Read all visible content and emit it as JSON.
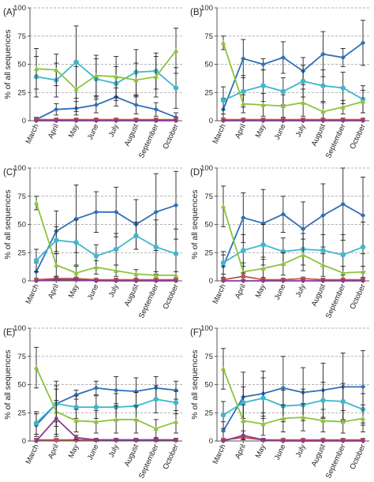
{
  "chart_data": [
    {
      "type": "line",
      "panel_label": "(A)",
      "ylabel": "% of all sequences",
      "categories": [
        "March",
        "April",
        "May",
        "June",
        "July",
        "August",
        "September",
        "October"
      ],
      "ylim": [
        0,
        100
      ],
      "yticks": [
        0,
        25,
        50,
        75,
        100
      ],
      "grid": true,
      "series": [
        {
          "color": "#2E6FB7",
          "values": [
            1,
            10,
            11,
            14,
            21,
            14,
            10,
            3
          ],
          "err": [
            2,
            5,
            6,
            7,
            8,
            8,
            6,
            4
          ]
        },
        {
          "color": "#3FB6CC",
          "values": [
            39,
            36,
            52,
            37,
            33,
            43,
            44,
            29
          ],
          "err": [
            18,
            15,
            32,
            18,
            15,
            20,
            16,
            18
          ]
        },
        {
          "color": "#8CC43C",
          "values": [
            46,
            45,
            28,
            40,
            39,
            36,
            39,
            62
          ],
          "err": [
            18,
            14,
            20,
            18,
            18,
            15,
            18,
            20
          ]
        },
        {
          "color": "#C0504D",
          "values": [
            1,
            1,
            1,
            1,
            1,
            1,
            1,
            1
          ],
          "err": [
            1,
            1,
            1,
            1,
            1,
            1,
            1,
            1
          ]
        },
        {
          "color": "#8A3C8F",
          "values": [
            0,
            0,
            0,
            0,
            0,
            0,
            0,
            0
          ],
          "err": [
            0,
            0,
            0,
            0,
            0,
            0,
            0,
            0
          ]
        }
      ]
    },
    {
      "type": "line",
      "panel_label": "(B)",
      "ylabel": "",
      "categories": [
        "March",
        "April",
        "May",
        "June",
        "July",
        "August",
        "September",
        "October"
      ],
      "ylim": [
        0,
        100
      ],
      "yticks": [
        0,
        25,
        50,
        75,
        100
      ],
      "grid": true,
      "series": [
        {
          "color": "#2E6FB7",
          "values": [
            10,
            55,
            50,
            56,
            44,
            59,
            56,
            69
          ],
          "err": [
            10,
            17,
            5,
            14,
            12,
            20,
            8,
            20
          ]
        },
        {
          "color": "#3FB6CC",
          "values": [
            18,
            26,
            31,
            26,
            35,
            31,
            29,
            19
          ],
          "err": [
            12,
            14,
            14,
            12,
            14,
            14,
            14,
            12
          ]
        },
        {
          "color": "#8CC43C",
          "values": [
            69,
            15,
            14,
            13,
            16,
            8,
            12,
            17
          ],
          "err": [
            6,
            8,
            10,
            10,
            12,
            8,
            6,
            10
          ]
        },
        {
          "color": "#C0504D",
          "values": [
            1,
            1,
            1,
            1,
            1,
            1,
            1,
            1
          ],
          "err": [
            1,
            1,
            1,
            1,
            1,
            1,
            1,
            1
          ]
        },
        {
          "color": "#8A3C8F",
          "values": [
            0,
            0,
            0,
            0,
            0,
            0,
            0,
            0
          ],
          "err": [
            0,
            0,
            0,
            0,
            0,
            0,
            0,
            0
          ]
        }
      ]
    },
    {
      "type": "line",
      "panel_label": "(C)",
      "ylabel": "% of all sequences",
      "categories": [
        "March",
        "April",
        "May",
        "June",
        "July",
        "August",
        "September",
        "October"
      ],
      "ylim": [
        0,
        100
      ],
      "yticks": [
        0,
        25,
        50,
        75,
        100
      ],
      "grid": true,
      "series": [
        {
          "color": "#2E6FB7",
          "values": [
            8,
            44,
            55,
            61,
            61,
            50,
            61,
            67
          ],
          "err": [
            8,
            18,
            30,
            18,
            22,
            22,
            34,
            30
          ]
        },
        {
          "color": "#3FB6CC",
          "values": [
            18,
            36,
            34,
            22,
            28,
            40,
            30,
            24
          ],
          "err": [
            10,
            12,
            20,
            10,
            14,
            12,
            24,
            22
          ]
        },
        {
          "color": "#8CC43C",
          "values": [
            69,
            14,
            7,
            12,
            9,
            6,
            5,
            5
          ],
          "err": [
            6,
            10,
            6,
            6,
            5,
            4,
            3,
            3
          ]
        },
        {
          "color": "#C0504D",
          "values": [
            1,
            2,
            2,
            1,
            1,
            1,
            1,
            1
          ],
          "err": [
            1,
            2,
            1,
            1,
            1,
            1,
            1,
            1
          ]
        },
        {
          "color": "#8A3C8F",
          "values": [
            0,
            1,
            1,
            0,
            0,
            0,
            0,
            0
          ],
          "err": [
            0,
            1,
            1,
            0,
            0,
            0,
            0,
            0
          ]
        }
      ]
    },
    {
      "type": "line",
      "panel_label": "(D)",
      "ylabel": "% of all sequences",
      "categories": [
        "March",
        "April",
        "May",
        "June",
        "July",
        "August",
        "September",
        "October"
      ],
      "ylim": [
        0,
        100
      ],
      "yticks": [
        0,
        25,
        50,
        75,
        100
      ],
      "grid": true,
      "series": [
        {
          "color": "#2E6FB7",
          "values": [
            13,
            56,
            51,
            59,
            46,
            58,
            68,
            58
          ],
          "err": [
            10,
            22,
            30,
            16,
            24,
            28,
            32,
            34
          ]
        },
        {
          "color": "#3FB6CC",
          "values": [
            16,
            27,
            32,
            26,
            28,
            27,
            23,
            30
          ],
          "err": [
            10,
            14,
            18,
            12,
            14,
            14,
            18,
            22
          ]
        },
        {
          "color": "#8CC43C",
          "values": [
            66,
            8,
            11,
            15,
            23,
            14,
            7,
            8
          ],
          "err": [
            18,
            8,
            8,
            10,
            14,
            10,
            6,
            5
          ]
        },
        {
          "color": "#C0504D",
          "values": [
            1,
            4,
            1,
            1,
            2,
            1,
            1,
            1
          ],
          "err": [
            1,
            3,
            1,
            1,
            1,
            1,
            1,
            1
          ]
        },
        {
          "color": "#8A3C8F",
          "values": [
            0,
            0,
            0,
            0,
            0,
            0,
            0,
            0
          ],
          "err": [
            0,
            0,
            0,
            0,
            0,
            0,
            0,
            0
          ]
        }
      ]
    },
    {
      "type": "line",
      "panel_label": "(E)",
      "ylabel": "% of all sequences",
      "categories": [
        "March",
        "April",
        "May",
        "June",
        "July",
        "August",
        "September",
        "October"
      ],
      "ylim": [
        0,
        100
      ],
      "yticks": [
        0,
        25,
        50,
        75,
        100
      ],
      "grid": true,
      "series": [
        {
          "color": "#2E6FB7",
          "values": [
            14,
            33,
            41,
            47,
            45,
            44,
            47,
            45
          ],
          "err": [
            10,
            20,
            4,
            6,
            12,
            12,
            10,
            8
          ]
        },
        {
          "color": "#3FB6CC",
          "values": [
            16,
            33,
            30,
            30,
            30,
            31,
            37,
            34
          ],
          "err": [
            10,
            16,
            10,
            10,
            12,
            12,
            12,
            10
          ]
        },
        {
          "color": "#8CC43C",
          "values": [
            65,
            26,
            18,
            17,
            19,
            19,
            11,
            17
          ],
          "err": [
            18,
            20,
            10,
            10,
            12,
            12,
            8,
            10
          ]
        },
        {
          "color": "#C0504D",
          "values": [
            1,
            1,
            1,
            1,
            1,
            1,
            1,
            1
          ],
          "err": [
            1,
            1,
            1,
            1,
            1,
            1,
            1,
            1
          ]
        },
        {
          "color": "#8A3C8F",
          "values": [
            0,
            20,
            3,
            1,
            1,
            1,
            1,
            1
          ],
          "err": [
            0,
            16,
            2,
            1,
            1,
            1,
            1,
            1
          ]
        }
      ]
    },
    {
      "type": "line",
      "panel_label": "(F)",
      "ylabel": "% of all sequences",
      "categories": [
        "March",
        "April",
        "May",
        "June",
        "July",
        "August",
        "September",
        "October"
      ],
      "ylim": [
        0,
        100
      ],
      "yticks": [
        0,
        25,
        50,
        75,
        100
      ],
      "grid": true,
      "series": [
        {
          "color": "#2E6FB7",
          "values": [
            9,
            39,
            42,
            47,
            43,
            45,
            48,
            48
          ],
          "err": [
            8,
            22,
            20,
            28,
            22,
            24,
            30,
            32
          ]
        },
        {
          "color": "#3FB6CC",
          "values": [
            23,
            34,
            38,
            31,
            32,
            36,
            35,
            28
          ],
          "err": [
            12,
            14,
            18,
            14,
            14,
            16,
            16,
            14
          ]
        },
        {
          "color": "#8CC43C",
          "values": [
            64,
            18,
            15,
            20,
            21,
            18,
            17,
            20
          ],
          "err": [
            18,
            14,
            10,
            12,
            12,
            10,
            10,
            12
          ]
        },
        {
          "color": "#C0504D",
          "values": [
            1,
            3,
            1,
            1,
            1,
            1,
            1,
            1
          ],
          "err": [
            1,
            2,
            1,
            1,
            1,
            1,
            1,
            1
          ]
        },
        {
          "color": "#8A3C8F",
          "values": [
            0,
            5,
            1,
            0,
            0,
            0,
            0,
            0
          ],
          "err": [
            0,
            4,
            1,
            0,
            0,
            0,
            0,
            0
          ]
        }
      ]
    }
  ]
}
